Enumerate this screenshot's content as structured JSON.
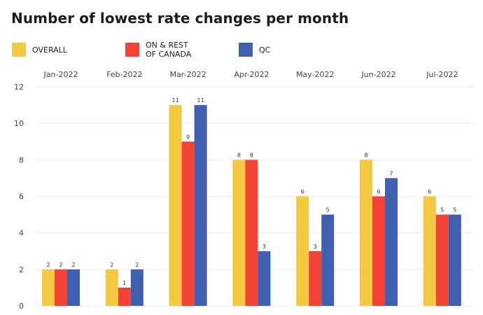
{
  "title": "Number of lowest rate changes per month",
  "legend": [
    {
      "label": "OVERALL",
      "color": "#F5C842"
    },
    {
      "label": "ON & REST\nOF CANADA",
      "color": "#F44336"
    },
    {
      "label": "QC",
      "color": "#3F5FB0"
    }
  ],
  "chart_data": {
    "type": "bar",
    "categories": [
      "Jan-2022",
      "Feb-2022",
      "Mar-2022",
      "Apr-2022",
      "May-2022",
      "Jun-2022",
      "Jul-2022"
    ],
    "series": [
      {
        "name": "OVERALL",
        "color": "#F5C842",
        "values": [
          2,
          2,
          11,
          8,
          6,
          8,
          6
        ]
      },
      {
        "name": "ON & REST OF CANADA",
        "color": "#F44336",
        "values": [
          2,
          1,
          9,
          8,
          3,
          6,
          5
        ]
      },
      {
        "name": "QC",
        "color": "#3F5FB0",
        "values": [
          2,
          2,
          11,
          3,
          5,
          7,
          5
        ]
      }
    ],
    "ylim": [
      0,
      12
    ],
    "yticks": [
      0,
      2,
      4,
      6,
      8,
      10,
      12
    ],
    "category_axis_position": "top",
    "data_labels": true,
    "grid": true
  }
}
